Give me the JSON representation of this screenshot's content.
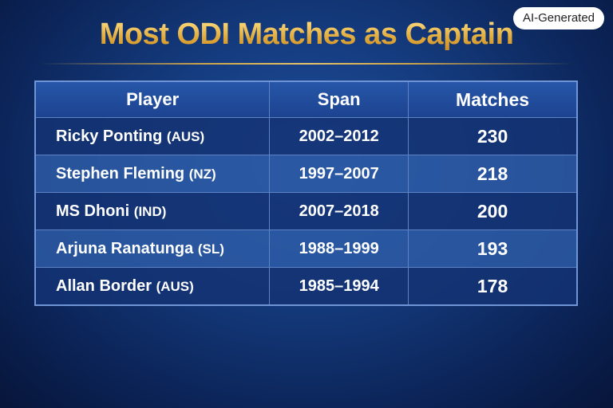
{
  "badge": "AI-Generated",
  "title": "Most ODI Matches as Captain",
  "table": {
    "headers": [
      "Player",
      "Span",
      "Matches"
    ],
    "rows": [
      {
        "player": "Ricky Ponting",
        "team": "(AUS)",
        "span": "2002–2012",
        "matches": 230
      },
      {
        "player": "Stephen Fleming",
        "team": "(NZ)",
        "span": "1997–2007",
        "matches": 218
      },
      {
        "player": "MS Dhoni",
        "team": "(IND)",
        "span": "2007–2018",
        "matches": 200
      },
      {
        "player": "Arjuna Ranatunga",
        "team": "(SL)",
        "span": "1988–1999",
        "matches": 193
      },
      {
        "player": "Allan Border",
        "team": "(AUS)",
        "span": "1985–1994",
        "matches": 178
      }
    ]
  }
}
